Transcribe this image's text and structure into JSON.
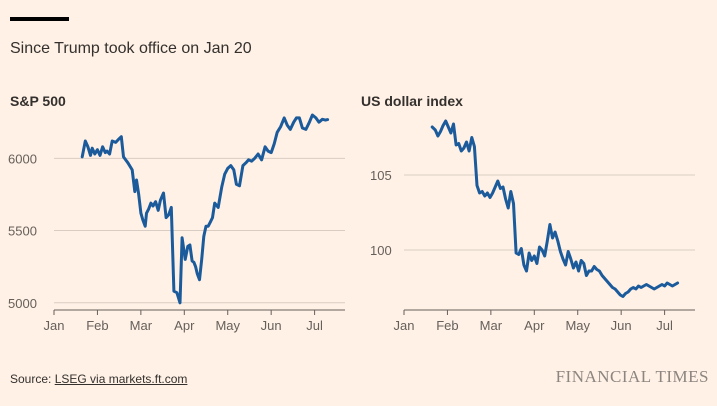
{
  "subtitle": "Since Trump took office on Jan 20",
  "source_prefix": "Source: ",
  "source_link": "LSEG via markets.ft.com",
  "brand": "FINANCIAL TIMES",
  "line_color": "#1b5b9c",
  "chart_data": [
    {
      "type": "line",
      "title": "S&P 500",
      "x_ticks": [
        "Jan",
        "Feb",
        "Mar",
        "Apr",
        "May",
        "Jun",
        "Jul"
      ],
      "y_ticks": [
        5000,
        5500,
        6000
      ],
      "ylim": [
        4950,
        6300
      ],
      "xlim": [
        0,
        6.7
      ],
      "grid": "horizontal",
      "series": [
        {
          "x": [
            0.65,
            0.72,
            0.78,
            0.84,
            0.88,
            0.94,
            1.0,
            1.06,
            1.12,
            1.18,
            1.22,
            1.28,
            1.34,
            1.42,
            1.48,
            1.55,
            1.6,
            1.7,
            1.8,
            1.86,
            1.9,
            1.95,
            2.0,
            2.05,
            2.1,
            2.13,
            2.18,
            2.23,
            2.28,
            2.34,
            2.4,
            2.45,
            2.52,
            2.58,
            2.64,
            2.7,
            2.76,
            2.83,
            2.9,
            2.95,
            3.02,
            3.08,
            3.13,
            3.18,
            3.22,
            3.26,
            3.3,
            3.35,
            3.4,
            3.45,
            3.5,
            3.55,
            3.6,
            3.65,
            3.7,
            3.78,
            3.86,
            3.93,
            4.0,
            4.07,
            4.14,
            4.2,
            4.27,
            4.35,
            4.42,
            4.48,
            4.55,
            4.62,
            4.7,
            4.78,
            4.86,
            4.93,
            5.0,
            5.07,
            5.14,
            5.22,
            5.3,
            5.37,
            5.44,
            5.52,
            5.58,
            5.65,
            5.72,
            5.8,
            5.88,
            5.95,
            6.03,
            6.1,
            6.18,
            6.25,
            6.3
          ],
          "y": [
            6010,
            6120,
            6080,
            6020,
            6070,
            6030,
            6060,
            6020,
            6080,
            6040,
            6050,
            6030,
            6120,
            6110,
            6130,
            6150,
            6010,
            5970,
            5920,
            5770,
            5850,
            5750,
            5620,
            5570,
            5530,
            5620,
            5650,
            5690,
            5670,
            5700,
            5640,
            5710,
            5760,
            5590,
            5610,
            5660,
            5080,
            5070,
            5000,
            5450,
            5300,
            5390,
            5400,
            5290,
            5280,
            5250,
            5200,
            5160,
            5300,
            5460,
            5530,
            5530,
            5560,
            5590,
            5690,
            5660,
            5800,
            5890,
            5930,
            5950,
            5920,
            5820,
            5810,
            5950,
            5970,
            5990,
            5980,
            6000,
            6030,
            5990,
            6080,
            6050,
            6040,
            6100,
            6180,
            6220,
            6280,
            6230,
            6200,
            6250,
            6280,
            6280,
            6210,
            6200,
            6250,
            6300,
            6280,
            6250,
            6270,
            6265,
            6268
          ]
        }
      ]
    },
    {
      "type": "line",
      "title": "US dollar index",
      "x_ticks": [
        "Jan",
        "Feb",
        "Mar",
        "Apr",
        "May",
        "Jun",
        "Jul"
      ],
      "y_ticks": [
        100,
        105
      ],
      "ylim": [
        96,
        109
      ],
      "xlim": [
        0,
        6.7
      ],
      "grid": "horizontal",
      "series": [
        {
          "x": [
            0.65,
            0.72,
            0.78,
            0.84,
            0.9,
            0.96,
            1.02,
            1.08,
            1.14,
            1.2,
            1.26,
            1.32,
            1.38,
            1.44,
            1.5,
            1.56,
            1.62,
            1.68,
            1.74,
            1.8,
            1.86,
            1.92,
            1.98,
            2.04,
            2.1,
            2.16,
            2.22,
            2.28,
            2.34,
            2.4,
            2.46,
            2.52,
            2.58,
            2.64,
            2.7,
            2.76,
            2.82,
            2.88,
            2.94,
            3.0,
            3.06,
            3.12,
            3.18,
            3.24,
            3.3,
            3.36,
            3.42,
            3.48,
            3.54,
            3.6,
            3.66,
            3.72,
            3.78,
            3.84,
            3.9,
            3.96,
            4.02,
            4.08,
            4.14,
            4.2,
            4.26,
            4.32,
            4.38,
            4.44,
            4.5,
            4.56,
            4.62,
            4.68,
            4.74,
            4.8,
            4.86,
            4.92,
            4.98,
            5.04,
            5.1,
            5.16,
            5.22,
            5.28,
            5.34,
            5.4,
            5.46,
            5.52,
            5.58,
            5.64,
            5.7,
            5.76,
            5.82,
            5.88,
            5.94,
            6.0,
            6.06,
            6.12,
            6.18,
            6.24,
            6.3
          ],
          "y": [
            108.2,
            108.0,
            107.6,
            107.9,
            108.3,
            108.6,
            108.2,
            107.8,
            108.4,
            107.0,
            107.1,
            106.6,
            106.8,
            107.2,
            106.6,
            107.5,
            106.9,
            104.3,
            103.8,
            103.9,
            103.6,
            103.8,
            103.5,
            103.8,
            104.2,
            104.6,
            104.1,
            104.2,
            103.4,
            102.8,
            103.9,
            103.1,
            99.8,
            99.7,
            100.1,
            99.0,
            98.6,
            99.8,
            99.3,
            99.6,
            99.1,
            100.2,
            100.0,
            99.6,
            100.6,
            101.7,
            100.8,
            101.2,
            100.6,
            99.9,
            99.4,
            99.0,
            99.9,
            99.4,
            98.8,
            99.2,
            98.6,
            99.3,
            99.1,
            98.3,
            98.6,
            98.6,
            98.9,
            98.7,
            98.6,
            98.3,
            98.1,
            97.9,
            97.7,
            97.5,
            97.4,
            97.2,
            97.0,
            96.9,
            97.1,
            97.2,
            97.4,
            97.5,
            97.4,
            97.6,
            97.5,
            97.6,
            97.7,
            97.6,
            97.5,
            97.4,
            97.5,
            97.6,
            97.7,
            97.6,
            97.8,
            97.7,
            97.6,
            97.7,
            97.8
          ]
        }
      ]
    }
  ]
}
